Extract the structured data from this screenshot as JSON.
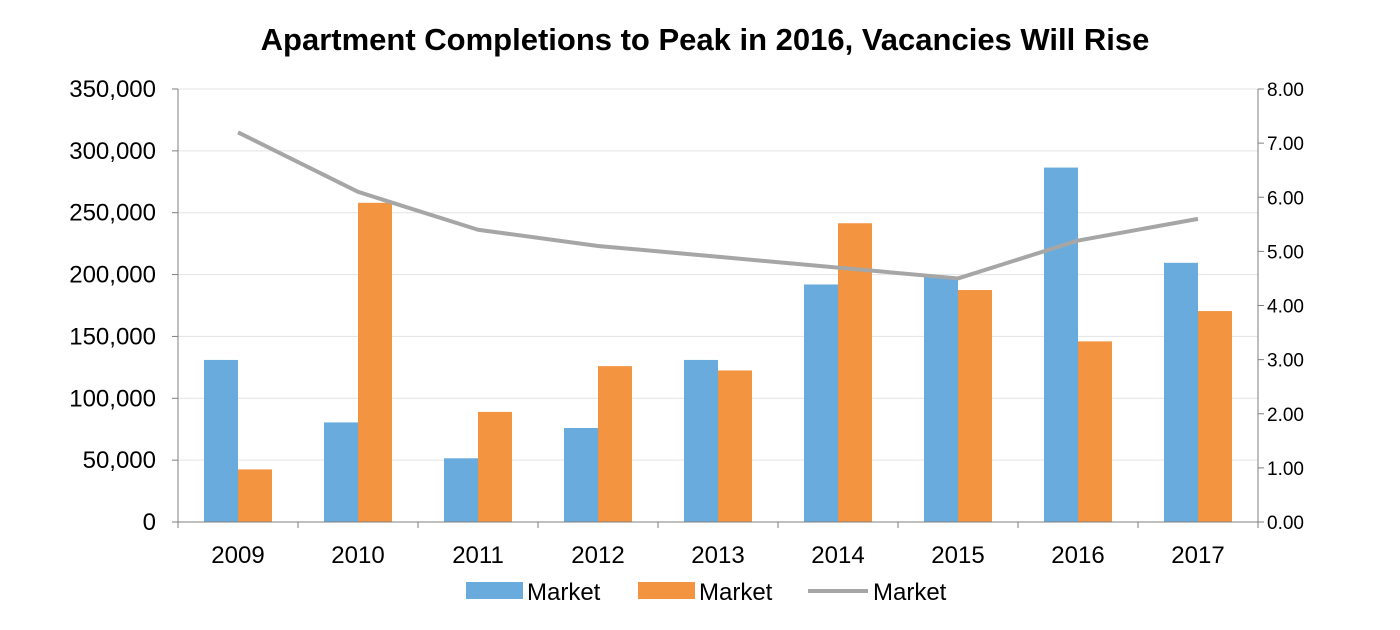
{
  "chart_data": {
    "type": "bar",
    "title": "Apartment Completions to Peak in 2016, Vacancies Will Rise",
    "categories": [
      "2009",
      "2010",
      "2011",
      "2012",
      "2013",
      "2014",
      "2015",
      "2016",
      "2017"
    ],
    "series": [
      {
        "name": "Market",
        "type": "bar",
        "axis": "left",
        "color": "#6AABDE",
        "values": [
          131000,
          80500,
          51500,
          76000,
          131000,
          192000,
          198000,
          286500,
          209500
        ]
      },
      {
        "name": "Market",
        "type": "bar",
        "axis": "left",
        "color": "#F39440",
        "values": [
          42500,
          258000,
          89000,
          126000,
          122500,
          241500,
          187500,
          146000,
          170500
        ]
      },
      {
        "name": "Market",
        "type": "line",
        "axis": "right",
        "color": "#A6A6A6",
        "values": [
          7.2,
          6.1,
          5.4,
          5.1,
          4.9,
          4.7,
          4.5,
          5.2,
          5.6
        ]
      }
    ],
    "y_left": {
      "min": 0,
      "max": 350000,
      "ticks": [
        0,
        50000,
        100000,
        150000,
        200000,
        250000,
        300000,
        350000
      ],
      "tick_labels": [
        "0",
        "50,000",
        "100,000",
        "150,000",
        "200,000",
        "250,000",
        "300,000",
        "350,000"
      ]
    },
    "y_right": {
      "min": 0,
      "max": 8,
      "ticks": [
        0,
        1,
        2,
        3,
        4,
        5,
        6,
        7,
        8
      ],
      "tick_labels": [
        "0.00",
        "1.00",
        "2.00",
        "3.00",
        "4.00",
        "5.00",
        "6.00",
        "7.00",
        "8.00"
      ]
    },
    "grid": true,
    "legend": {
      "position": "bottom"
    }
  }
}
